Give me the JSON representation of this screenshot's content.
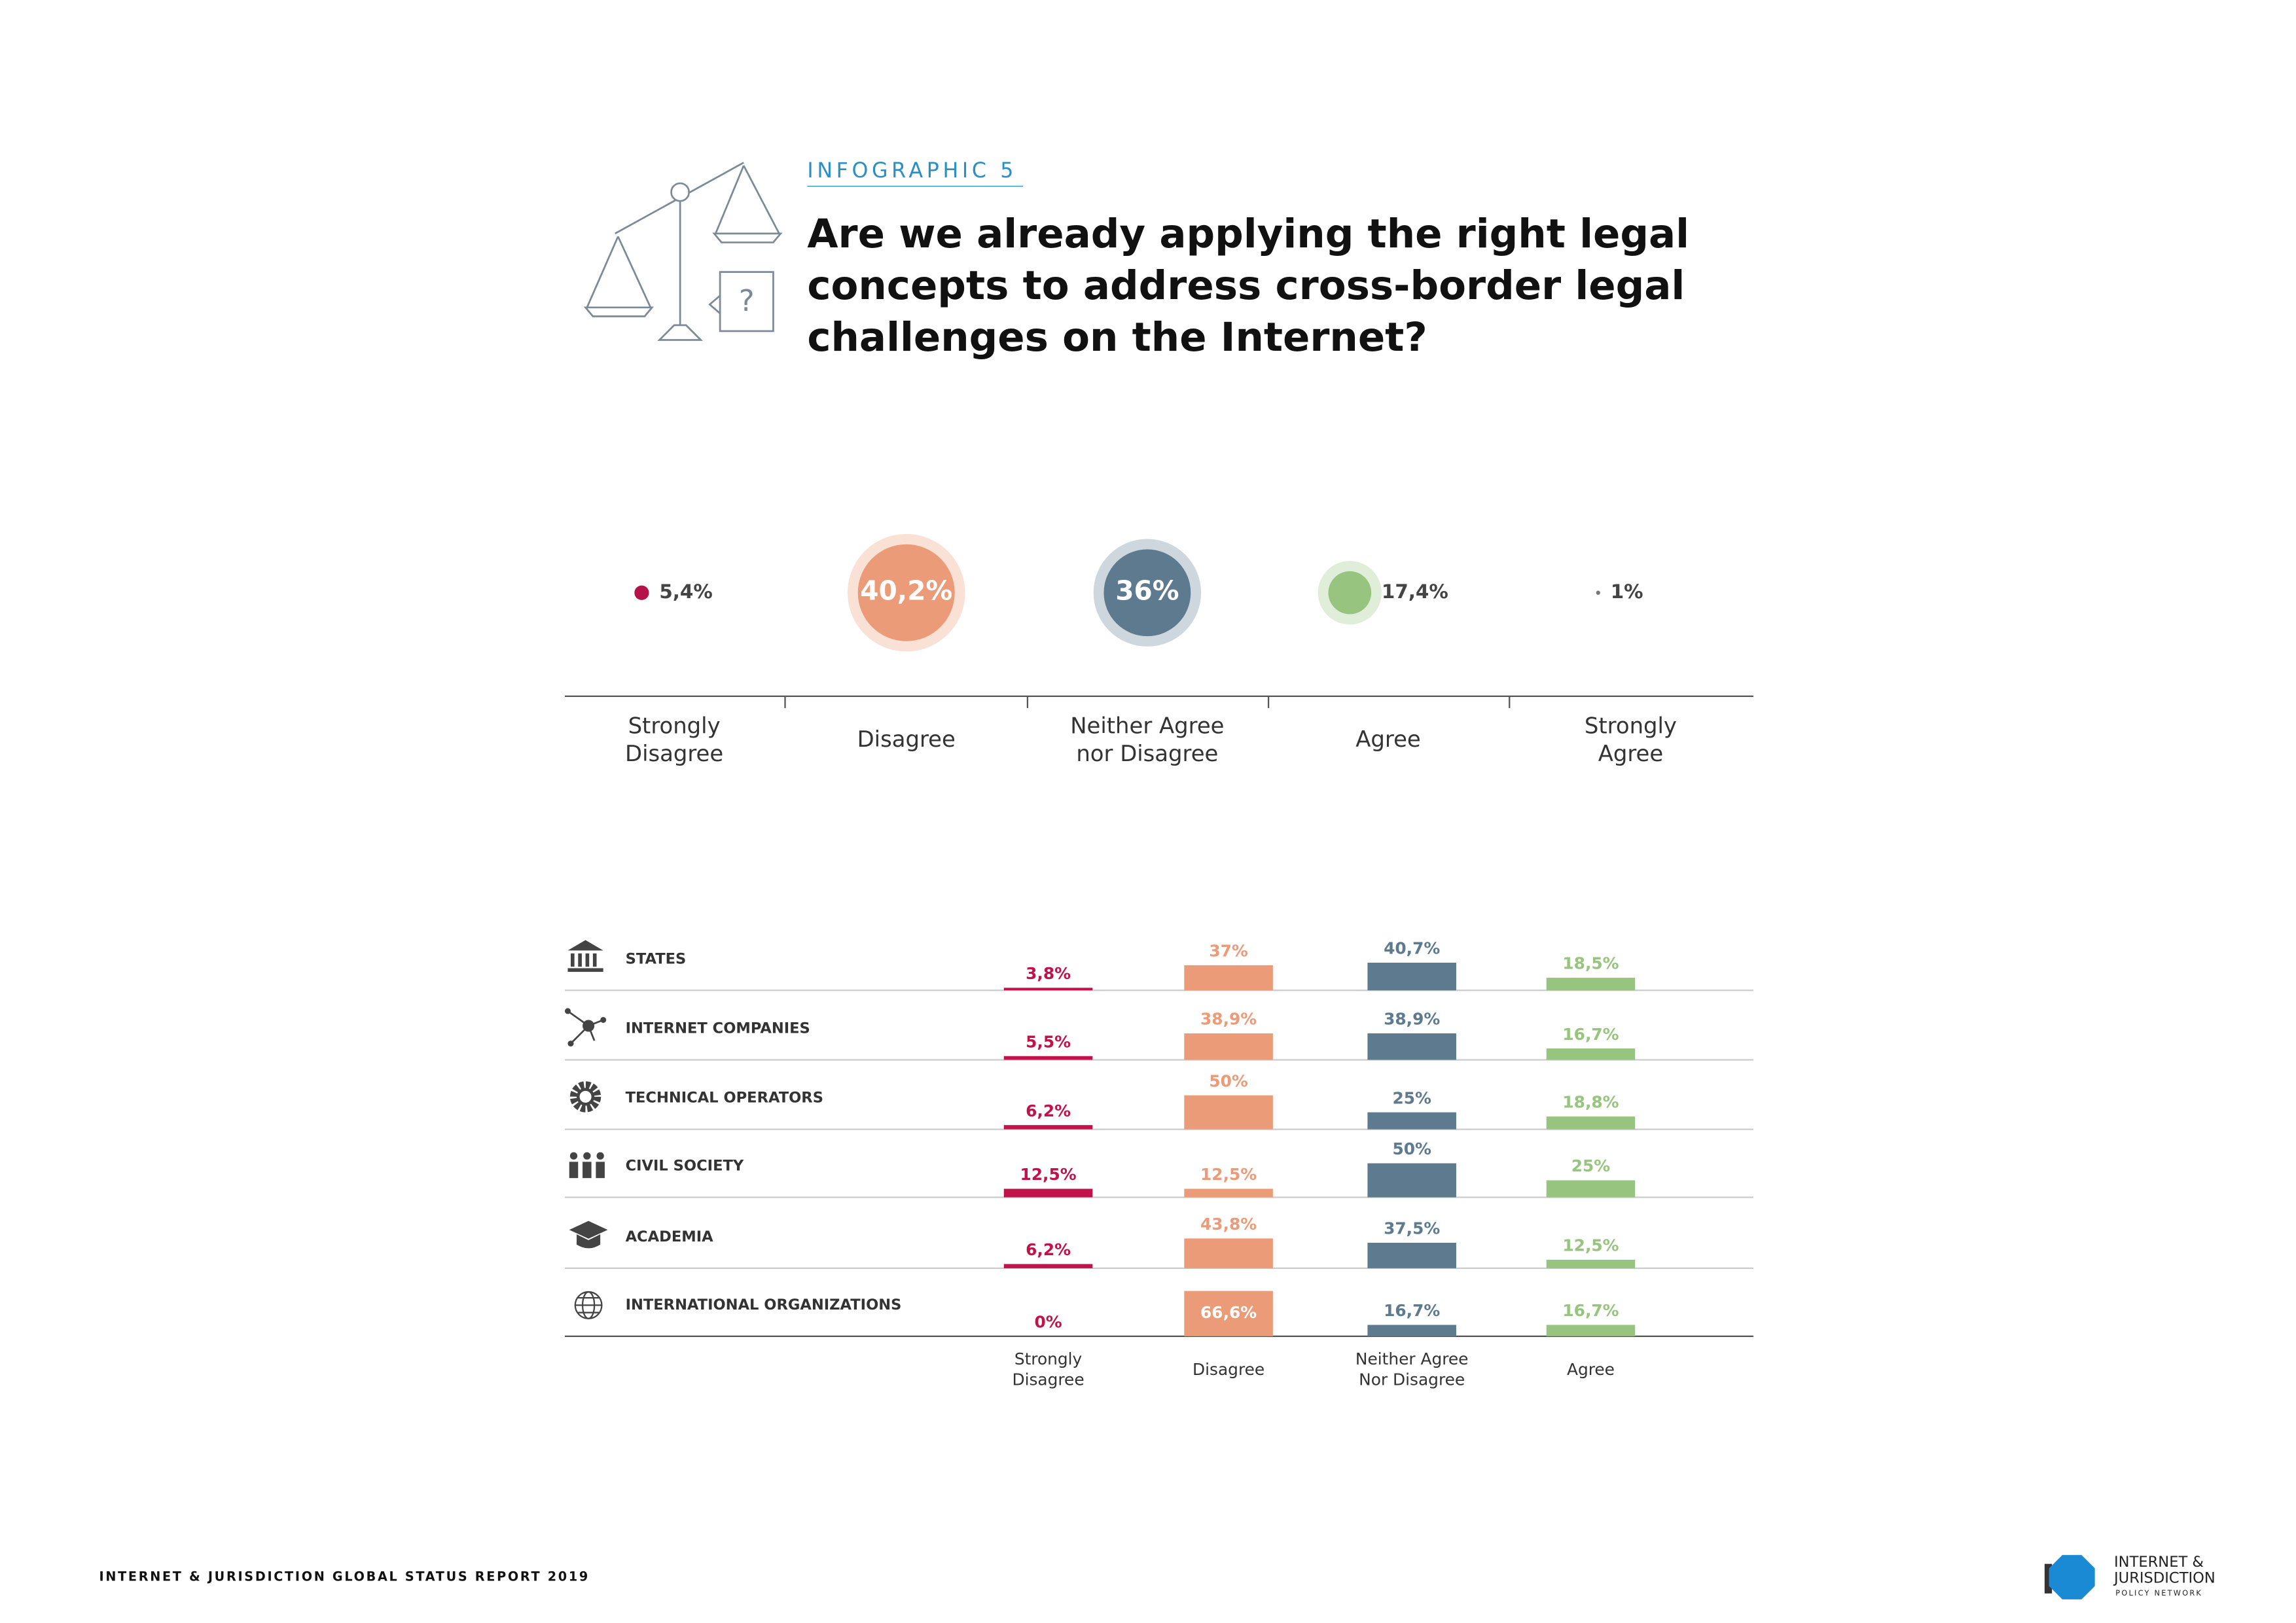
{
  "header": {
    "kicker": "INFOGRAPHIC 5",
    "title": [
      "Are we already applying the right legal",
      "concepts to address cross-border legal",
      "challenges on the Internet?"
    ]
  },
  "chart_data": [
    {
      "type": "bubble",
      "categories": [
        "Strongly Disagree",
        "Disagree",
        "Neither Agree nor Disagree",
        "Agree",
        "Strongly Agree"
      ],
      "values": [
        5.4,
        40.2,
        36,
        17.4,
        1
      ],
      "value_labels": [
        "5,4%",
        "40,2%",
        "36%",
        "17,4%",
        "1%"
      ],
      "colors": [
        "#b5124a",
        "#ec9b78",
        "#5e7a8f",
        "#97c47e",
        "#777777"
      ]
    },
    {
      "type": "bar",
      "categories": [
        "STATES",
        "INTERNET COMPANIES",
        "TECHNICAL OPERATORS",
        "CIVIL SOCIETY",
        "ACADEMIA",
        "INTERNATIONAL ORGANIZATIONS"
      ],
      "series": [
        {
          "name": "Strongly Disagree",
          "color": "#c0134c",
          "values": [
            3.8,
            5.5,
            6.2,
            12.5,
            6.2,
            0
          ],
          "value_labels": [
            "3,8%",
            "5,5%",
            "6,2%",
            "12,5%",
            "6,2%",
            "0%"
          ]
        },
        {
          "name": "Disagree",
          "color": "#ec9b78",
          "values": [
            37,
            38.9,
            50,
            12.5,
            43.8,
            66.6
          ],
          "value_labels": [
            "37%",
            "38,9%",
            "50%",
            "12,5%",
            "43,8%",
            "66,6%"
          ]
        },
        {
          "name": "Neither Agree Nor Disagree",
          "color": "#5e7a8f",
          "values": [
            40.7,
            38.9,
            25,
            50,
            37.5,
            16.7
          ],
          "value_labels": [
            "40,7%",
            "38,9%",
            "25%",
            "50%",
            "37,5%",
            "16,7%"
          ]
        },
        {
          "name": "Agree",
          "color": "#97c47e",
          "values": [
            18.5,
            16.7,
            18.8,
            25,
            12.5,
            16.7
          ],
          "value_labels": [
            "18,5%",
            "16,7%",
            "18,8%",
            "25%",
            "12,5%",
            "16,7%"
          ]
        }
      ]
    }
  ],
  "footer": {
    "report": "INTERNET & JURISDICTION GLOBAL STATUS REPORT 2019",
    "logo": [
      "INTERNET &",
      "JURISDICTION",
      "POLICY NETWORK"
    ]
  }
}
